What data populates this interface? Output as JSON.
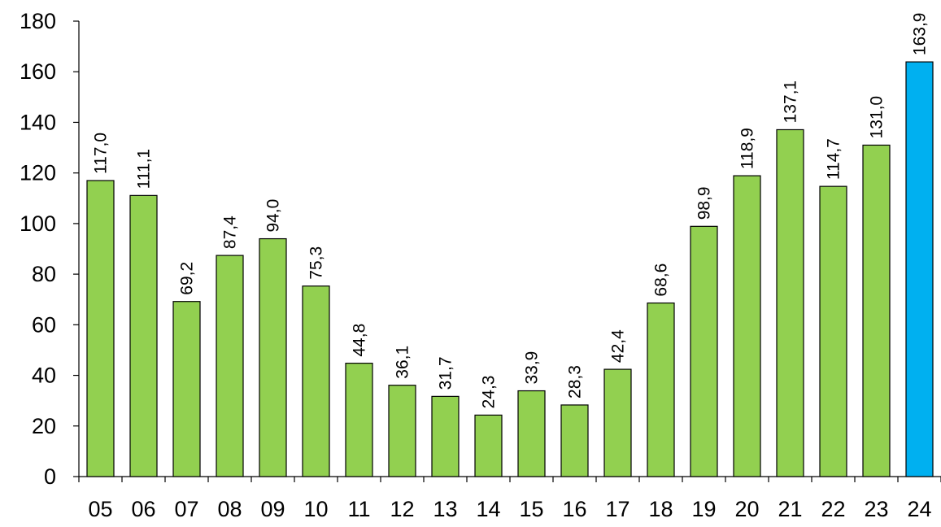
{
  "chart_data": {
    "type": "bar",
    "categories": [
      "05",
      "06",
      "07",
      "08",
      "09",
      "10",
      "11",
      "12",
      "13",
      "14",
      "15",
      "16",
      "17",
      "18",
      "19",
      "20",
      "21",
      "22",
      "23",
      "24"
    ],
    "values": [
      117.0,
      111.1,
      69.2,
      87.4,
      94.0,
      75.3,
      44.8,
      36.1,
      31.7,
      24.3,
      33.9,
      28.3,
      42.4,
      68.6,
      98.9,
      118.9,
      137.1,
      114.7,
      131.0,
      163.9
    ],
    "data_labels": [
      "117,0",
      "111,1",
      "69,2",
      "87,4",
      "94,0",
      "75,3",
      "44,8",
      "36,1",
      "31,7",
      "24,3",
      "33,9",
      "28,3",
      "42,4",
      "68,6",
      "98,9",
      "118,9",
      "137,1",
      "114,7",
      "131,0",
      "163,9"
    ],
    "highlight_index": 19,
    "ylim": [
      0,
      180
    ],
    "yticks": [
      0,
      20,
      40,
      60,
      80,
      100,
      120,
      140,
      160,
      180
    ],
    "title": "",
    "xlabel": "",
    "ylabel": "",
    "grid": false,
    "legend": "none",
    "colors": {
      "bar": "#92d050",
      "highlight": "#00b0f0",
      "outline": "#000000"
    }
  }
}
